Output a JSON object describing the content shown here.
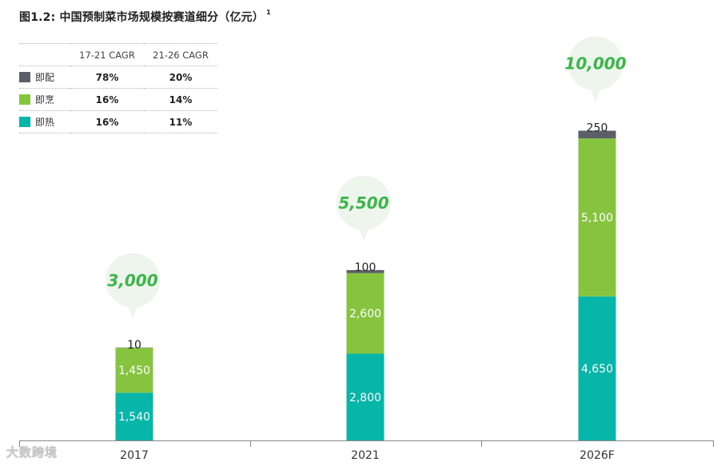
{
  "title": "图1.2: 中国预制菜市场规模按赛道细分（亿元）",
  "title_footnote": "1",
  "table": {
    "headers": [
      "",
      "17-21 CAGR",
      "21-26 CAGR"
    ],
    "rows": [
      {
        "label": "即配",
        "color": "#5b6068",
        "cagr_17_21": "78%",
        "cagr_21_26": "20%"
      },
      {
        "label": "即烹",
        "color": "#86c440",
        "cagr_17_21": "16%",
        "cagr_21_26": "14%"
      },
      {
        "label": "即热",
        "color": "#07b5a9",
        "cagr_17_21": "16%",
        "cagr_21_26": "11%"
      }
    ]
  },
  "watermark": "大数跨境",
  "chart_data": {
    "type": "bar",
    "stacked": true,
    "categories": [
      "2017",
      "2021",
      "2026F"
    ],
    "series": [
      {
        "name": "即热",
        "color": "#07b5a9",
        "values": [
          1540,
          2800,
          4650
        ],
        "labels": [
          "1,540",
          "2,800",
          "4,650"
        ]
      },
      {
        "name": "即烹",
        "color": "#86c440",
        "values": [
          1450,
          2600,
          5100
        ],
        "labels": [
          "1,450",
          "2,600",
          "5,100"
        ]
      },
      {
        "name": "即配",
        "color": "#5b6068",
        "values": [
          10,
          100,
          250
        ],
        "labels": [
          "10",
          "100",
          "250"
        ]
      }
    ],
    "totals": [
      "3,000",
      "5,500",
      "10,000"
    ],
    "total_color": "#3cb54a",
    "bubble_color": "#eef5ec",
    "axis_color": "#888888"
  }
}
